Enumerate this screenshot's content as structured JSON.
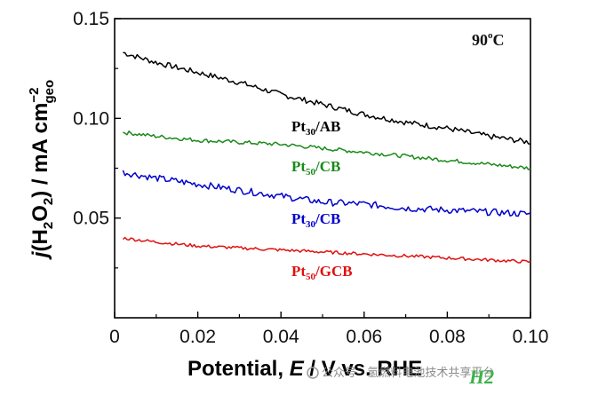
{
  "chart_data": {
    "type": "line",
    "x": [
      0.002,
      0.01,
      0.02,
      0.03,
      0.04,
      0.05,
      0.06,
      0.07,
      0.08,
      0.09,
      0.1
    ],
    "series": [
      {
        "name": "Pt30/AB",
        "name_main": "Pt",
        "name_sub": "30",
        "name_rest": "/AB",
        "color": "#000000",
        "values": [
          0.133,
          0.128,
          0.123,
          0.118,
          0.112,
          0.107,
          0.102,
          0.098,
          0.095,
          0.091,
          0.088
        ],
        "noise": 0.0014
      },
      {
        "name": "Pt50/CB",
        "name_main": "Pt",
        "name_sub": "50",
        "name_rest": "/CB",
        "color": "#1a8a1a",
        "values": [
          0.093,
          0.091,
          0.089,
          0.088,
          0.087,
          0.085,
          0.083,
          0.081,
          0.079,
          0.077,
          0.075
        ],
        "noise": 0.001
      },
      {
        "name": "Pt30/CB",
        "name_main": "Pt",
        "name_sub": "30",
        "name_rest": "/CB",
        "color": "#0000cc",
        "values": [
          0.073,
          0.07,
          0.067,
          0.064,
          0.061,
          0.058,
          0.057,
          0.055,
          0.054,
          0.053,
          0.052
        ],
        "noise": 0.0017
      },
      {
        "name": "Pt50/GCB",
        "name_main": "Pt",
        "name_sub": "50",
        "name_rest": "/GCB",
        "color": "#e01010",
        "values": [
          0.04,
          0.038,
          0.036,
          0.035,
          0.034,
          0.033,
          0.032,
          0.031,
          0.03,
          0.029,
          0.028
        ],
        "noise": 0.0008
      }
    ],
    "xlim": [
      0,
      0.1
    ],
    "ylim": [
      0,
      0.15
    ],
    "xticks": [
      "0",
      "0.02",
      "0.04",
      "0.06",
      "0.08",
      "0.10"
    ],
    "yticks": [
      "0.05",
      "0.10",
      "0.15"
    ],
    "xlabel": "Potential, E / V vs. RHE",
    "ylabel": "j(H2O2) / mA cm−2geo",
    "annotation": "90oC",
    "grid": false
  },
  "watermark": {
    "text": "公众号 · 氢燃料电池技术共享平台",
    "brand": "H2"
  }
}
